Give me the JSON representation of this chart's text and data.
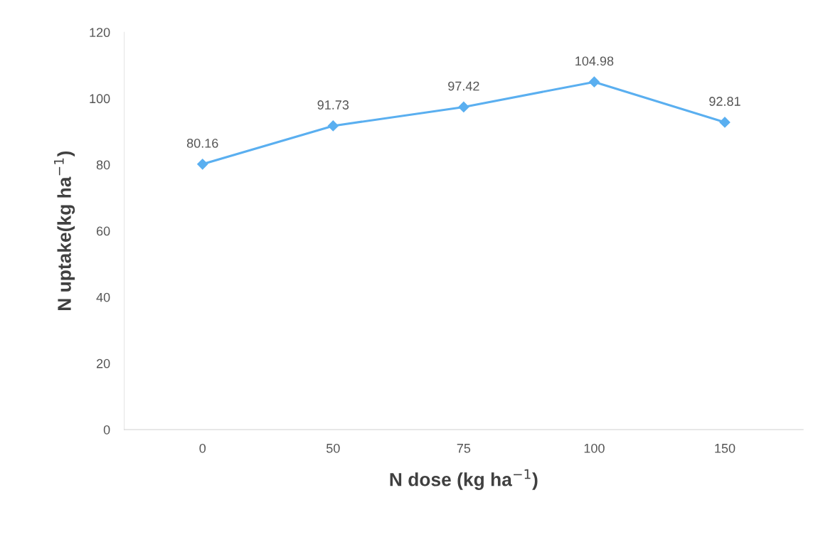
{
  "chart_data": {
    "type": "line",
    "xlabel": "N dose (kg ha$^{−1}$)",
    "ylabel": "N uptake(kg ha$^{−1}$)",
    "categories": [
      "0",
      "50",
      "75",
      "100",
      "150"
    ],
    "series": [
      {
        "color": "#5aaff0",
        "values": [
          80.16,
          91.73,
          97.42,
          104.98,
          92.81
        ]
      }
    ],
    "ylim": [
      0,
      120
    ],
    "yticks": [
      0,
      20,
      40,
      60,
      80,
      100,
      120
    ],
    "data_labels": true,
    "marker": "diamond",
    "line_style": "solid",
    "grid": false,
    "legend": false
  }
}
